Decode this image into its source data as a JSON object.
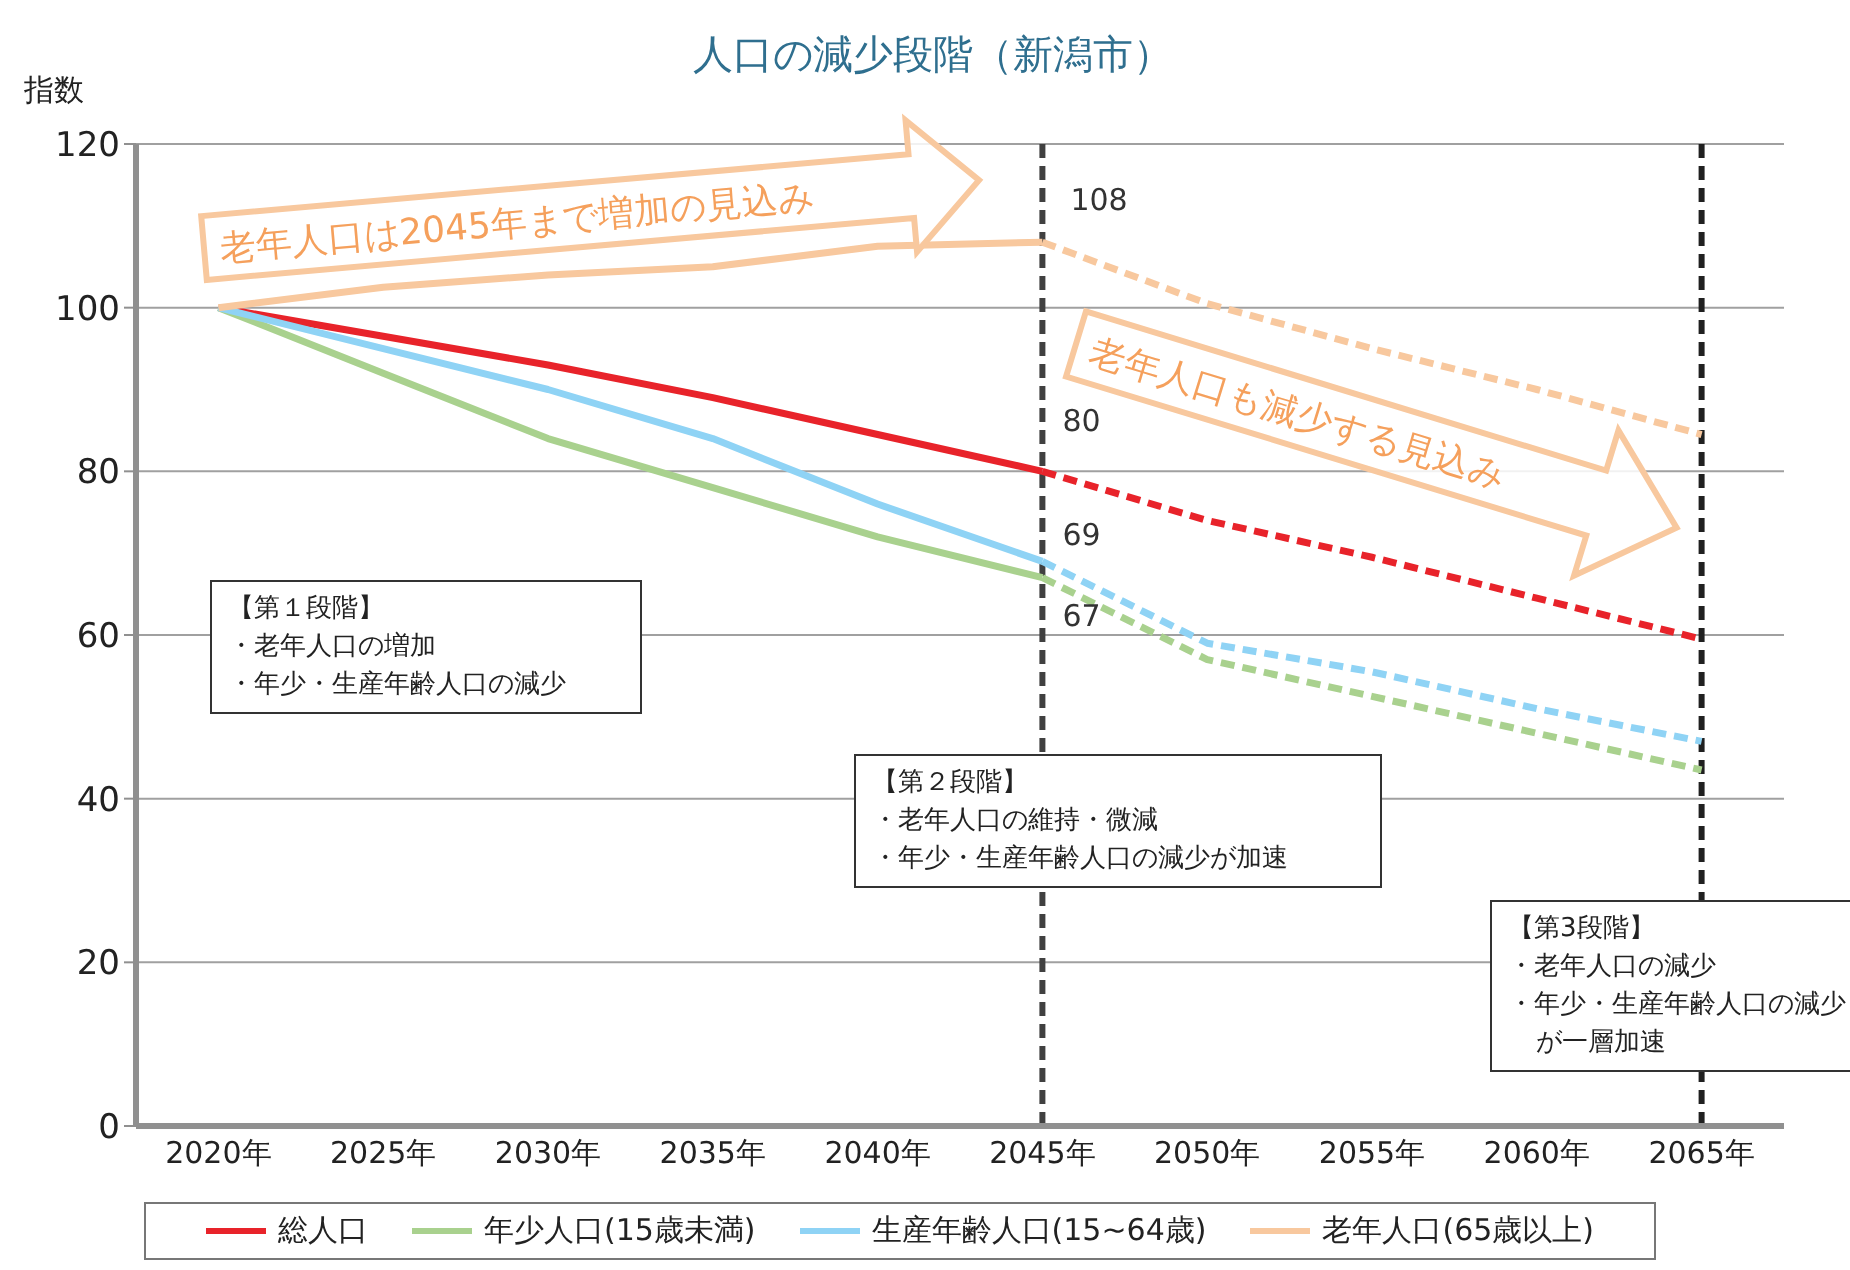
{
  "chart_data": {
    "type": "line",
    "title": "人口の減少段階（新潟市）",
    "ylabel": "指数",
    "categories": [
      "2020年",
      "2025年",
      "2030年",
      "2035年",
      "2040年",
      "2045年",
      "2050年",
      "2055年",
      "2060年",
      "2065年"
    ],
    "series": [
      {
        "name": "総人口",
        "color": "#e8232a",
        "line_style": "solid",
        "values": [
          100,
          96.5,
          93,
          89,
          84.5,
          80,
          null,
          null,
          null,
          null
        ]
      },
      {
        "name": "年少人口(15歳未満)",
        "color": "#a9d18e",
        "line_style": "solid",
        "values": [
          100,
          92,
          84,
          78,
          72,
          67,
          null,
          null,
          null,
          null
        ]
      },
      {
        "name": "生産年齢人口(15~64歳)",
        "color": "#8fd3f5",
        "line_style": "solid",
        "values": [
          100,
          95,
          90,
          84,
          76,
          69,
          null,
          null,
          null,
          null
        ]
      },
      {
        "name": "老年人口(65歳以上)",
        "color": "#f8c89e",
        "line_style": "solid",
        "values": [
          100,
          102.5,
          104,
          105,
          107.5,
          108,
          null,
          null,
          null,
          null
        ]
      },
      {
        "color": "#e8232a",
        "line_style": "dashed",
        "values": [
          null,
          null,
          null,
          null,
          null,
          80,
          74,
          69.5,
          64.5,
          59.5
        ]
      },
      {
        "color": "#a9d18e",
        "line_style": "dashed",
        "values": [
          null,
          null,
          null,
          null,
          null,
          67,
          57,
          52.5,
          48,
          43.5
        ]
      },
      {
        "color": "#8fd3f5",
        "line_style": "dashed",
        "values": [
          null,
          null,
          null,
          null,
          null,
          69,
          59,
          55.5,
          51,
          47
        ]
      },
      {
        "color": "#f8c89e",
        "line_style": "dashed",
        "values": [
          null,
          null,
          null,
          null,
          null,
          108,
          100.5,
          95,
          90,
          84.5
        ]
      }
    ],
    "ylim": [
      0,
      120
    ],
    "yticks": [
      0,
      20,
      40,
      60,
      80,
      100,
      120
    ],
    "grid": "y",
    "legend": "bottom",
    "marker": "none",
    "ref_lines": [
      {
        "axis": "x",
        "value": "2045年",
        "color": "#404040",
        "line_style": "dashed"
      },
      {
        "axis": "x",
        "value": "2065年",
        "color": "#202020",
        "line_style": "dashed"
      }
    ],
    "annotations": [
      {
        "text": "108",
        "x": "2045年",
        "y": 108
      },
      {
        "text": "80",
        "x": "2045年",
        "y": 80
      },
      {
        "text": "69",
        "x": "2045年",
        "y": 69
      },
      {
        "text": "67",
        "x": "2045年",
        "y": 67
      },
      "老年人口は2045年まで増加の見込み",
      "老年人口も減少する見込み",
      "【第１段階】",
      "・老年人口の増加",
      "・年少・生産年齢人口の減少",
      "【第２段階】",
      "・老年人口の維持・微減",
      "・年少・生産年齢人口の減少が加速",
      "【第3段階】",
      "・老年人口の減少",
      "・年少・生産年齢人口の減少が一層加速"
    ]
  }
}
